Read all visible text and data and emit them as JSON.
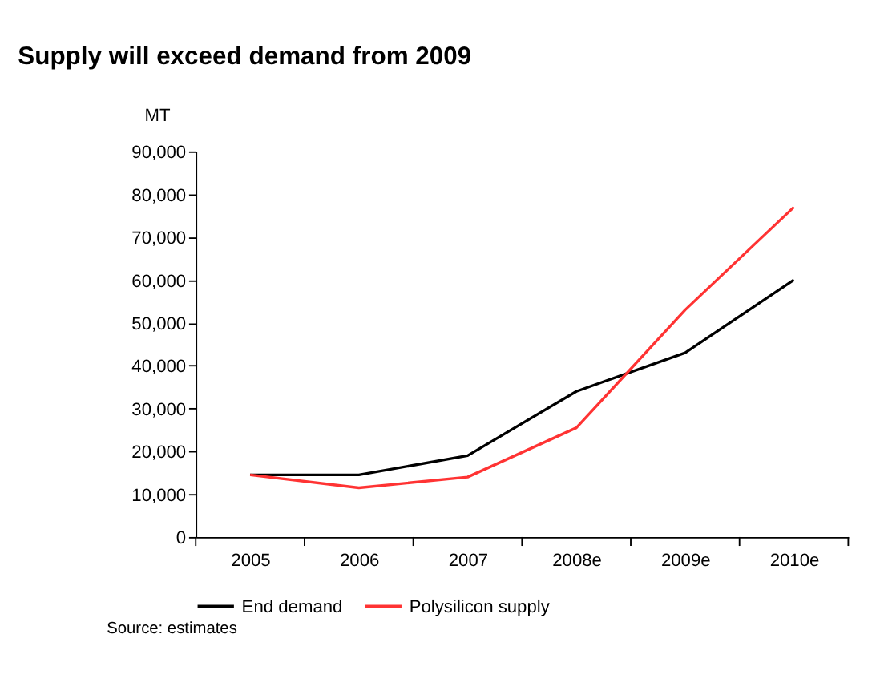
{
  "chart_data": {
    "type": "line",
    "title": "Supply will exceed demand from 2009",
    "ylabel": "MT",
    "categories": [
      "2005",
      "2006",
      "2007",
      "2008e",
      "2009e",
      "2010e"
    ],
    "series": [
      {
        "name": "End demand",
        "color": "#000000",
        "values": [
          14500,
          14500,
          19000,
          34000,
          43000,
          60000
        ]
      },
      {
        "name": "Polysilicon supply",
        "color": "#ff3333",
        "values": [
          14500,
          11500,
          14000,
          25500,
          53000,
          77000
        ]
      }
    ],
    "ylim": [
      0,
      90000
    ],
    "yticks": [
      0,
      {
        "value": 10000,
        "label": "10,000"
      },
      {
        "value": 20000,
        "label": "20,000"
      },
      {
        "value": 30000,
        "label": "30,000"
      },
      {
        "value": 40000,
        "label": "40,000"
      },
      {
        "value": 50000,
        "label": "50,000"
      },
      {
        "value": 60000,
        "label": "60,000"
      },
      {
        "value": 70000,
        "label": "70,000"
      },
      {
        "value": 80000,
        "label": "80,000"
      },
      {
        "value": 90000,
        "label": "90,000"
      }
    ],
    "grid": false,
    "legend": "bottom",
    "marker": "none",
    "line_style": "solid",
    "annotations": [
      "Source: estimates"
    ]
  }
}
